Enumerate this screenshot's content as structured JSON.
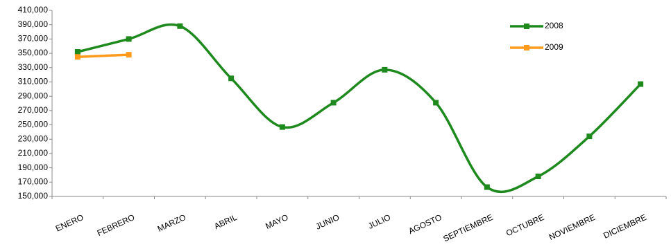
{
  "chart_data": {
    "type": "line",
    "categories": [
      "ENERO",
      "FEBRERO",
      "MARZO",
      "ABRIL",
      "MAYO",
      "JUNIO",
      "JULIO",
      "AGOSTO",
      "SEPTIEMBRE",
      "OCTUBRE",
      "NOVIEMBRE",
      "DICIEMBRE"
    ],
    "series": [
      {
        "name": "2008",
        "color": "#1e8a1e",
        "values": [
          352000,
          370000,
          388000,
          315000,
          247000,
          281000,
          327000,
          281000,
          163000,
          178000,
          234000,
          307000
        ]
      },
      {
        "name": "2009",
        "color": "#ff9a1a",
        "values": [
          345000,
          348000,
          null,
          null,
          null,
          null,
          null,
          null,
          null,
          null,
          null,
          null
        ]
      }
    ],
    "ylim": [
      150000,
      410000
    ],
    "yticks": [
      {
        "value": 150000,
        "label": "150,000"
      },
      {
        "value": 170000,
        "label": "170,000"
      },
      {
        "value": 190000,
        "label": "190,000"
      },
      {
        "value": 210000,
        "label": "210,000"
      },
      {
        "value": 230000,
        "label": "230,000"
      },
      {
        "value": 250000,
        "label": "250,000"
      },
      {
        "value": 270000,
        "label": "270,000"
      },
      {
        "value": 290000,
        "label": "290,000"
      },
      {
        "value": 310000,
        "label": "310,000"
      },
      {
        "value": 330000,
        "label": "330,000"
      },
      {
        "value": 350000,
        "label": "350,000"
      },
      {
        "value": 370000,
        "label": "370,000"
      },
      {
        "value": 390000,
        "label": "390,000"
      },
      {
        "value": 410000,
        "label": "410,000"
      }
    ],
    "smooth": true,
    "grid": false,
    "legend": "upper right"
  }
}
